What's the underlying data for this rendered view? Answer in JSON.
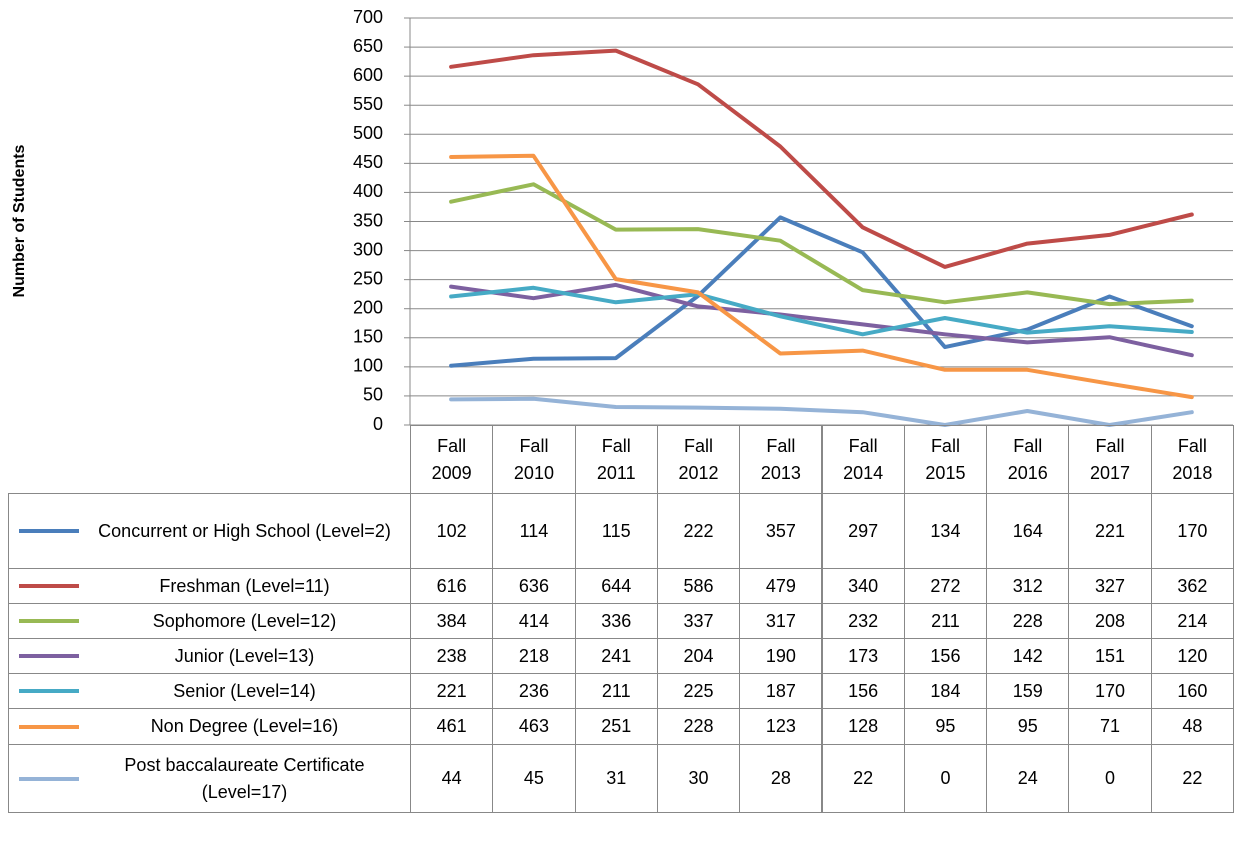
{
  "chart_data": {
    "type": "line",
    "y_label": "Number of Students",
    "categories": [
      "Fall 2009",
      "Fall 2010",
      "Fall 2011",
      "Fall 2012",
      "Fall 2013",
      "Fall 2014",
      "Fall 2015",
      "Fall 2016",
      "Fall 2017",
      "Fall 2018"
    ],
    "series": [
      {
        "name": "Concurrent or High School (Level=2)",
        "color": "#4a7ebb",
        "values": [
          102,
          114,
          115,
          222,
          357,
          297,
          134,
          164,
          221,
          170
        ]
      },
      {
        "name": "Freshman (Level=11)",
        "color": "#be4b48",
        "values": [
          616,
          636,
          644,
          586,
          479,
          340,
          272,
          312,
          327,
          362
        ]
      },
      {
        "name": "Sophomore (Level=12)",
        "color": "#98b954",
        "values": [
          384,
          414,
          336,
          337,
          317,
          232,
          211,
          228,
          208,
          214
        ]
      },
      {
        "name": "Junior (Level=13)",
        "color": "#7d60a0",
        "values": [
          238,
          218,
          241,
          204,
          190,
          173,
          156,
          142,
          151,
          120
        ]
      },
      {
        "name": "Senior (Level=14)",
        "color": "#46aac5",
        "values": [
          221,
          236,
          211,
          225,
          187,
          156,
          184,
          159,
          170,
          160
        ]
      },
      {
        "name": "Non Degree (Level=16)",
        "color": "#f79646",
        "values": [
          461,
          463,
          251,
          228,
          123,
          128,
          95,
          95,
          71,
          48
        ]
      },
      {
        "name": "Post baccalaureate Certificate (Level=17)",
        "color": "#95b3d7",
        "values": [
          44,
          45,
          31,
          30,
          28,
          22,
          0,
          24,
          0,
          22
        ]
      }
    ],
    "ylim": [
      0,
      700
    ],
    "yticks": [
      0,
      50,
      100,
      150,
      200,
      250,
      300,
      350,
      400,
      450,
      500,
      550,
      600,
      650,
      700
    ],
    "grid": true
  }
}
